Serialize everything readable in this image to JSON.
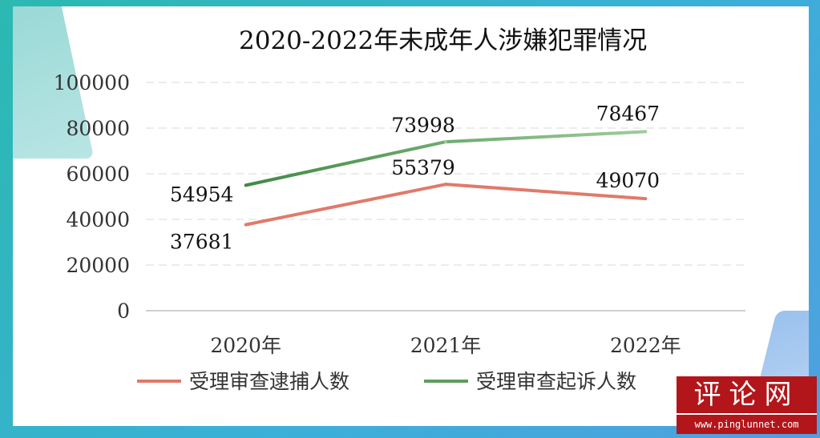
{
  "chart_data": {
    "type": "line",
    "title": "2020-2022年未成年人涉嫌犯罪情况",
    "categories": [
      "2020年",
      "2021年",
      "2022年"
    ],
    "ylim": [
      0,
      100000
    ],
    "yticks": [
      "0",
      "20000",
      "40000",
      "60000",
      "80000",
      "100000"
    ],
    "grid": true,
    "legend_position": "bottom",
    "series": [
      {
        "name": "受理审查逮捕人数",
        "values": [
          37681,
          55379,
          49070
        ],
        "labels": [
          "37681",
          "55379",
          "49070"
        ],
        "color": "#e07a6a"
      },
      {
        "name": "受理审查起诉人数",
        "values": [
          54954,
          73998,
          78467
        ],
        "labels": [
          "54954",
          "73998",
          "78467"
        ],
        "color_start": "#3f8a45",
        "color_end": "#9fcc9a"
      }
    ]
  },
  "watermark": {
    "name": "评论网",
    "url": "www.pinglunnet.com",
    "color": "#b3161a"
  }
}
